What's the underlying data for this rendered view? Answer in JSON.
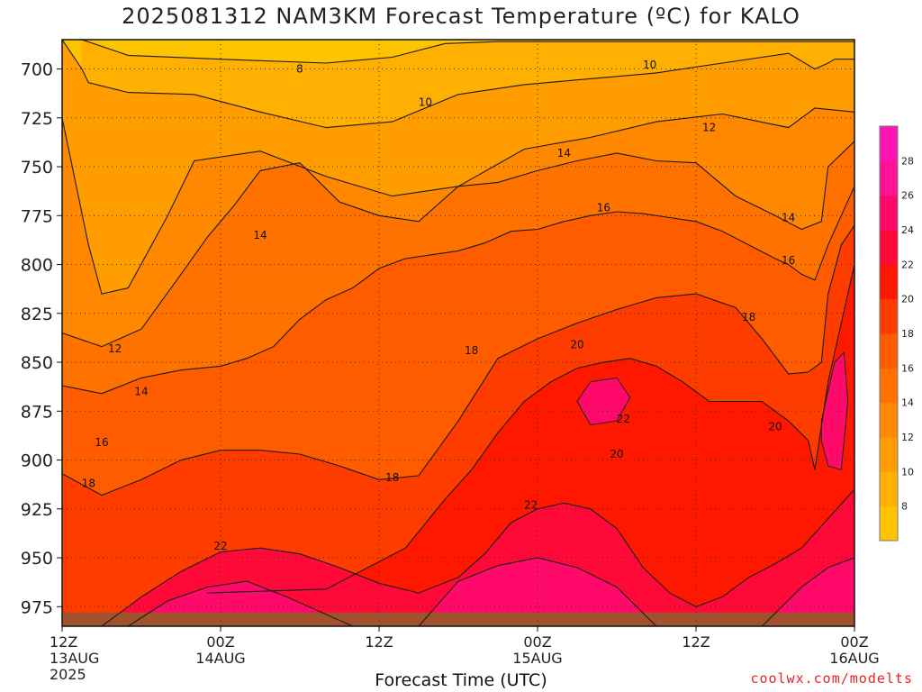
{
  "title": "2025081312 NAM3KM Forecast Temperature (ºC) for KALO",
  "credit": "coolwx.com/modelts",
  "chart_data": {
    "type": "heatmap",
    "title": "2025081312 NAM3KM Forecast Temperature (ºC) for KALO",
    "xlabel": "Forecast Time (UTC)",
    "ylabel": "",
    "x_ticks": [
      {
        "hour": 0,
        "lines": [
          "12Z",
          "13AUG",
          "2025"
        ]
      },
      {
        "hour": 12,
        "lines": [
          "00Z",
          "14AUG"
        ]
      },
      {
        "hour": 24,
        "lines": [
          "12Z"
        ]
      },
      {
        "hour": 36,
        "lines": [
          "00Z",
          "15AUG"
        ]
      },
      {
        "hour": 48,
        "lines": [
          "12Z"
        ]
      },
      {
        "hour": 60,
        "lines": [
          "00Z",
          "16AUG"
        ]
      }
    ],
    "xlim": [
      0,
      60
    ],
    "ylim": [
      985,
      685
    ],
    "y_ticks": [
      700,
      725,
      750,
      775,
      800,
      825,
      850,
      875,
      900,
      925,
      950,
      975
    ],
    "grid": "dotted horizontal at y ticks",
    "colorbar": {
      "labels": [
        8,
        10,
        12,
        14,
        16,
        18,
        20,
        22,
        24,
        26,
        28
      ],
      "levels": [
        6,
        8,
        10,
        12,
        14,
        16,
        18,
        20,
        22,
        24,
        26,
        28,
        30
      ],
      "colors": [
        "#ffc400",
        "#ffb000",
        "#ff9c00",
        "#ff8800",
        "#ff7200",
        "#ff5c00",
        "#ff3c00",
        "#ff1800",
        "#ff0a38",
        "#ff0a6a",
        "#ff1496",
        "#ff14b8"
      ]
    },
    "surface_color": "#a0522d",
    "series": [
      {
        "name": "8",
        "x": [
          1.5,
          5,
          12,
          20,
          25,
          29,
          33,
          37,
          42,
          48,
          55,
          60
        ],
        "p": [
          685,
          693,
          695,
          697,
          694,
          687,
          686,
          686,
          686,
          686,
          686,
          686
        ]
      },
      {
        "name": "10",
        "x": [
          0,
          1.5,
          2,
          5,
          10,
          15,
          20,
          25,
          30,
          35,
          40,
          45,
          50,
          55,
          57,
          58,
          58.5,
          60
        ],
        "p": [
          685,
          700,
          707,
          712,
          713,
          722,
          730,
          727,
          713,
          708,
          705,
          702,
          697,
          692,
          700,
          697,
          695,
          695
        ]
      },
      {
        "name": "12",
        "x": [
          0,
          2,
          3,
          5,
          8,
          10,
          15,
          20,
          25,
          30,
          35,
          40,
          45,
          50,
          55,
          57,
          60
        ],
        "p": [
          725,
          790,
          815,
          812,
          775,
          747,
          742,
          755,
          765,
          760,
          741,
          735,
          727,
          723,
          730,
          720,
          722
        ]
      },
      {
        "name": "14",
        "x": [
          0,
          3,
          6,
          9,
          11,
          13,
          15,
          18,
          21,
          24,
          27,
          30,
          33,
          36,
          39,
          42,
          45,
          48,
          51,
          54,
          56,
          57.5,
          58,
          60
        ],
        "p": [
          835,
          842,
          833,
          805,
          786,
          770,
          752,
          748,
          768,
          775,
          778,
          760,
          758,
          752,
          747,
          743,
          747,
          748,
          765,
          775,
          782,
          778,
          750,
          737
        ]
      },
      {
        "name": "16",
        "x": [
          0,
          3,
          6,
          9,
          12,
          14,
          16,
          18,
          20,
          22,
          24,
          26,
          28,
          30,
          32,
          34,
          36,
          38,
          40,
          42,
          44,
          46,
          48,
          50,
          52,
          54,
          55,
          56,
          57,
          58,
          59,
          60
        ],
        "p": [
          862,
          866,
          858,
          854,
          852,
          848,
          842,
          828,
          818,
          812,
          802,
          797,
          795,
          793,
          789,
          783,
          782,
          778,
          775,
          773,
          774,
          776,
          778,
          783,
          790,
          797,
          800,
          805,
          808,
          790,
          775,
          760
        ]
      },
      {
        "name": "18",
        "x": [
          0,
          3,
          6,
          9,
          12,
          15,
          18,
          21,
          24,
          27,
          30,
          33,
          36,
          39,
          42,
          45,
          48,
          51,
          53,
          55,
          56.5,
          57.5,
          58,
          59,
          60
        ],
        "p": [
          907,
          918,
          910,
          900,
          895,
          895,
          897,
          903,
          910,
          908,
          880,
          848,
          838,
          830,
          823,
          817,
          815,
          822,
          838,
          856,
          855,
          850,
          815,
          790,
          780
        ]
      },
      {
        "name": "20",
        "x": [
          11,
          20,
          26,
          29,
          31,
          33,
          35,
          37,
          39,
          41,
          43,
          45,
          47,
          49,
          51,
          53,
          55,
          56.5,
          57,
          58,
          59,
          60
        ],
        "p": [
          968,
          966,
          945,
          920,
          905,
          886,
          870,
          860,
          853,
          850,
          848,
          852,
          860,
          870,
          870,
          870,
          880,
          890,
          905,
          860,
          830,
          800
        ]
      },
      {
        "name": "22",
        "x": [
          3,
          6,
          9,
          12,
          15,
          18,
          21,
          24,
          27,
          30,
          32,
          34,
          36,
          38,
          40,
          42,
          44,
          46,
          48,
          50,
          52,
          54,
          56,
          58,
          60
        ],
        "p": [
          985,
          970,
          957,
          947,
          945,
          948,
          955,
          963,
          968,
          960,
          948,
          932,
          925,
          922,
          925,
          935,
          955,
          968,
          975,
          970,
          960,
          953,
          945,
          930,
          915
        ]
      },
      {
        "name": "24",
        "x": [
          5,
          8,
          11,
          14,
          17,
          22,
          27,
          30,
          33,
          36,
          39,
          42,
          45,
          48,
          53,
          56,
          58,
          60
        ],
        "p": [
          985,
          972,
          965,
          962,
          970,
          985,
          985,
          962,
          954,
          950,
          955,
          965,
          985,
          985,
          985,
          965,
          955,
          950
        ]
      }
    ],
    "regions": [
      {
        "name": "22",
        "x": [
          40,
          42,
          43,
          42,
          40,
          39
        ],
        "p": [
          860,
          858,
          868,
          880,
          882,
          870
        ]
      },
      {
        "name": "22",
        "x": [
          57.5,
          58.5,
          59.2,
          59.5,
          59,
          58,
          57.5
        ],
        "p": [
          880,
          850,
          845,
          870,
          905,
          903,
          890
        ]
      }
    ],
    "contour_labels": [
      {
        "text": "8",
        "x": 18,
        "p": 700
      },
      {
        "text": "10",
        "x": 27.5,
        "p": 717
      },
      {
        "text": "10",
        "x": 44.5,
        "p": 698
      },
      {
        "text": "12",
        "x": 49,
        "p": 730
      },
      {
        "text": "12",
        "x": 4,
        "p": 843
      },
      {
        "text": "14",
        "x": 15,
        "p": 785
      },
      {
        "text": "14",
        "x": 38,
        "p": 743
      },
      {
        "text": "14",
        "x": 6,
        "p": 865
      },
      {
        "text": "14",
        "x": 55,
        "p": 776
      },
      {
        "text": "16",
        "x": 41,
        "p": 771
      },
      {
        "text": "16",
        "x": 3,
        "p": 891
      },
      {
        "text": "16",
        "x": 55,
        "p": 798
      },
      {
        "text": "18",
        "x": 31,
        "p": 844
      },
      {
        "text": "18",
        "x": 2,
        "p": 912
      },
      {
        "text": "18",
        "x": 25,
        "p": 909
      },
      {
        "text": "18",
        "x": 52,
        "p": 827
      },
      {
        "text": "20",
        "x": 39,
        "p": 841
      },
      {
        "text": "20",
        "x": 42,
        "p": 897
      },
      {
        "text": "20",
        "x": 54,
        "p": 883
      },
      {
        "text": "22",
        "x": 12,
        "p": 944
      },
      {
        "text": "22",
        "x": 35.5,
        "p": 923
      },
      {
        "text": "22",
        "x": 42.5,
        "p": 879
      }
    ]
  }
}
